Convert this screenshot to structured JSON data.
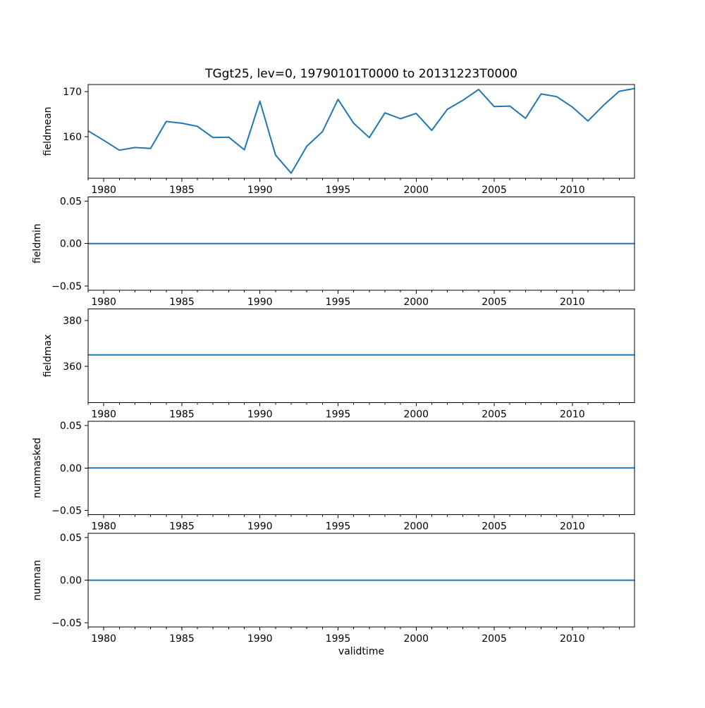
{
  "figure": {
    "title": "TGgt25, lev=0, 19790101T0000 to 20131223T0000",
    "xlabel": "validtime",
    "background": "#ffffff",
    "line_color": "#1f77b4",
    "axis_color": "#000000",
    "xlim": [
      1979.0,
      2013.98
    ],
    "xtick_major_values": [
      1980,
      1985,
      1990,
      1995,
      2000,
      2005,
      2010
    ],
    "xtick_major_labels": [
      "1980",
      "1985",
      "1990",
      "1995",
      "2000",
      "2005",
      "2010"
    ],
    "xtick_minor_years": [
      1979,
      1981,
      1982,
      1983,
      1984,
      1986,
      1987,
      1988,
      1989,
      1991,
      1992,
      1993,
      1994,
      1996,
      1997,
      1998,
      1999,
      2001,
      2002,
      2003,
      2004,
      2006,
      2007,
      2008,
      2009,
      2011,
      2012,
      2013
    ],
    "grid": false,
    "legend": false
  },
  "chart_data": [
    {
      "type": "line",
      "ylabel": "fieldmean",
      "ylim": [
        150.8,
        171.6
      ],
      "ytick_values": [
        170,
        160
      ],
      "ytick_labels": [
        "170",
        "160"
      ],
      "x": [
        1979,
        1980,
        1981,
        1982,
        1983,
        1984,
        1985,
        1986,
        1987,
        1988,
        1989,
        1990,
        1991,
        1992,
        1993,
        1994,
        1995,
        1996,
        1997,
        1998,
        1999,
        2000,
        2001,
        2002,
        2003,
        2004,
        2005,
        2006,
        2007,
        2008,
        2009,
        2010,
        2011,
        2012,
        2013,
        2013.98
      ],
      "y": [
        161.3,
        159.2,
        157.0,
        157.6,
        157.4,
        163.4,
        163.0,
        162.3,
        159.8,
        159.9,
        157.1,
        167.9,
        155.9,
        151.9,
        157.9,
        161.1,
        168.3,
        163.0,
        159.8,
        165.3,
        164.0,
        165.2,
        161.4,
        166.1,
        168.1,
        170.5,
        166.7,
        166.8,
        164.1,
        169.5,
        168.9,
        166.6,
        163.5,
        167.0,
        170.1,
        170.7
      ]
    },
    {
      "type": "line",
      "ylabel": "fieldmin",
      "ylim": [
        -0.055,
        0.055
      ],
      "ytick_values": [
        0.05,
        0.0,
        -0.05
      ],
      "ytick_labels": [
        "0.05",
        "0.00",
        "−0.05"
      ],
      "x": [
        1979,
        2013.98
      ],
      "y": [
        0.0,
        0.0
      ]
    },
    {
      "type": "line",
      "ylabel": "fieldmax",
      "ylim": [
        344.2,
        385.0
      ],
      "ytick_values": [
        380,
        360
      ],
      "ytick_labels": [
        "380",
        "360"
      ],
      "x": [
        1979,
        2013.98
      ],
      "y": [
        365.0,
        365.0
      ]
    },
    {
      "type": "line",
      "ylabel": "nummasked",
      "ylim": [
        -0.055,
        0.055
      ],
      "ytick_values": [
        0.05,
        0.0,
        -0.05
      ],
      "ytick_labels": [
        "0.05",
        "0.00",
        "−0.05"
      ],
      "x": [
        1979,
        2013.98
      ],
      "y": [
        0.0,
        0.0
      ]
    },
    {
      "type": "line",
      "ylabel": "numnan",
      "ylim": [
        -0.055,
        0.055
      ],
      "ytick_values": [
        0.05,
        0.0,
        -0.05
      ],
      "ytick_labels": [
        "0.05",
        "0.00",
        "−0.05"
      ],
      "x": [
        1979,
        2013.98
      ],
      "y": [
        0.0,
        0.0
      ]
    }
  ]
}
